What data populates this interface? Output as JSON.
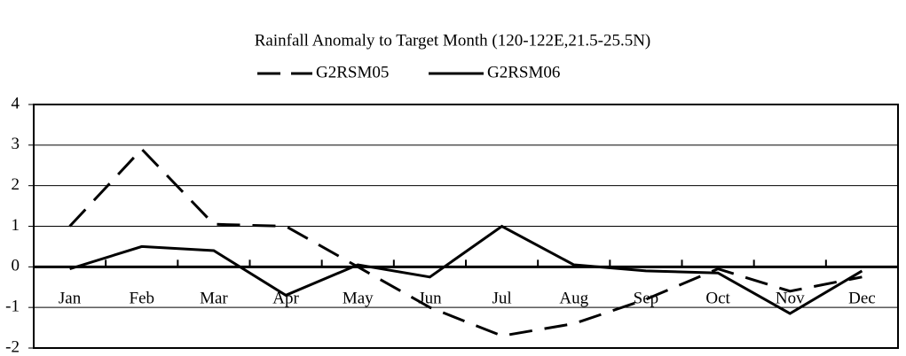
{
  "chart_data": {
    "type": "line",
    "title": "Rainfall Anomaly to Target Month (120-122E,21.5-25.5N)",
    "categories": [
      "Jan",
      "Feb",
      "Mar",
      "Apr",
      "May",
      "Jun",
      "Jul",
      "Aug",
      "Sep",
      "Oct",
      "Nov",
      "Dec"
    ],
    "series": [
      {
        "name": "G2RSM05",
        "color": "#000000",
        "dash": true,
        "values": [
          1.0,
          2.9,
          1.05,
          1.0,
          0.0,
          -1.0,
          -1.7,
          -1.4,
          -0.8,
          -0.05,
          -0.6,
          -0.25
        ]
      },
      {
        "name": "G2RSM06",
        "color": "#000000",
        "dash": false,
        "values": [
          -0.05,
          0.5,
          0.4,
          -0.7,
          0.05,
          -0.25,
          1.0,
          0.05,
          -0.1,
          -0.15,
          -1.15,
          -0.1
        ]
      }
    ],
    "ylim": [
      -2,
      4
    ],
    "yticks": [
      -2,
      -1,
      0,
      1,
      2,
      3,
      4
    ],
    "grid": true,
    "legend": "top"
  }
}
